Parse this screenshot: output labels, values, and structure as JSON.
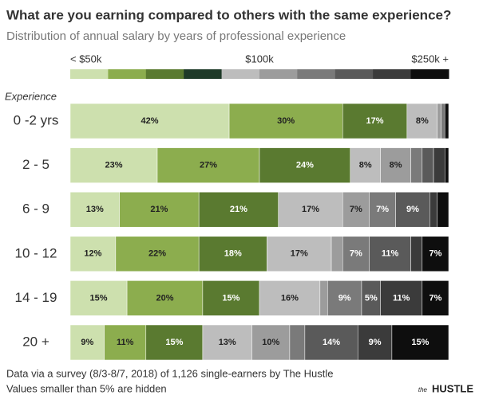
{
  "chart_data": {
    "type": "stacked_bar_100",
    "title": "What are you earning compared to others with the same experience?",
    "subtitle": "Distribution of annual salary by years of professional experience",
    "axis_label": "Experience",
    "legend": {
      "labels": [
        "< $50k",
        "$100k",
        "$250k +"
      ]
    },
    "categories": [
      "0 -2 yrs",
      "2 - 5",
      "6 - 9",
      "10 - 12",
      "14 - 19",
      "20 +"
    ],
    "series": [
      {
        "color": "#cde0ae",
        "values": [
          42,
          23,
          13,
          12,
          15,
          9
        ],
        "value_labels": [
          "42%",
          "23%",
          "13%",
          "12%",
          "15%",
          "9%"
        ]
      },
      {
        "color": "#8cad4e",
        "values": [
          30,
          27,
          21,
          22,
          20,
          11
        ],
        "value_labels": [
          "30%",
          "27%",
          "21%",
          "22%",
          "20%",
          "11%"
        ]
      },
      {
        "color": "#5a7a30",
        "values": [
          17,
          24,
          21,
          18,
          15,
          15
        ],
        "value_labels": [
          "17%",
          "24%",
          "21%",
          "18%",
          "15%",
          "15%"
        ]
      },
      {
        "color": "#1e3a28",
        "values": [
          0,
          0,
          0,
          0,
          0,
          0
        ],
        "value_labels": [
          null,
          null,
          null,
          null,
          null,
          null
        ]
      },
      {
        "color": "#bdbdbd",
        "values": [
          8,
          8,
          17,
          17,
          16,
          13
        ],
        "value_labels": [
          "8%",
          "8%",
          "17%",
          "17%",
          "16%",
          "13%"
        ]
      },
      {
        "color": "#9c9c9c",
        "values": [
          1,
          8,
          7,
          3,
          2,
          10
        ],
        "value_labels": [
          null,
          "8%",
          "7%",
          null,
          null,
          "10%"
        ]
      },
      {
        "color": "#7a7a7a",
        "values": [
          1,
          3,
          7,
          7,
          9,
          4
        ],
        "value_labels": [
          null,
          null,
          "7%",
          "7%",
          "9%",
          null
        ]
      },
      {
        "color": "#5a5a5a",
        "values": [
          0,
          3,
          9,
          11,
          5,
          14
        ],
        "value_labels": [
          null,
          null,
          "9%",
          "11%",
          "5%",
          "14%"
        ]
      },
      {
        "color": "#3b3b3b",
        "values": [
          0,
          3,
          2,
          3,
          11,
          9
        ],
        "value_labels": [
          null,
          null,
          null,
          null,
          "11%",
          "9%"
        ]
      },
      {
        "color": "#0e0e0e",
        "values": [
          1,
          1,
          3,
          7,
          7,
          15
        ],
        "value_labels": [
          null,
          null,
          null,
          "7%",
          "7%",
          "15%"
        ]
      }
    ],
    "footnotes": [
      "Data via a survey (8/3-8/7, 2018) of 1,126 single-earners by The Hustle",
      "Values smaller than 5% are hidden"
    ],
    "logo": {
      "prefix": "the",
      "name": "HUSTLE"
    }
  }
}
